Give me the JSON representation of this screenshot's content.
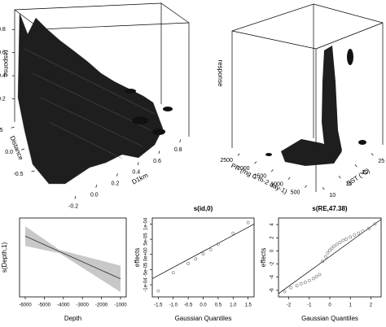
{
  "chart_data": [
    {
      "type": "surface3d",
      "axes": {
        "x": {
          "label": "D1km",
          "lim": [
            -0.3,
            0.85
          ],
          "ticks": [
            -0.2,
            {
              "value": 0,
              "label": "0.0"
            },
            0.2,
            0.4,
            0.6,
            0.8
          ]
        },
        "y": {
          "label": "Distance",
          "lim": [
            -0.8,
            0.8
          ],
          "ticks": [
            -0.5,
            {
              "value": 0,
              "label": "0.0"
            },
            0.5
          ]
        },
        "z": {
          "label": "response",
          "lim": [
            0,
            0.9
          ],
          "ticks": [
            0.2,
            0.4,
            0.6,
            0.8
          ]
        }
      }
    },
    {
      "type": "surface3d",
      "axes": {
        "x": {
          "label": "PP (mg C m-2 day-1)",
          "lim": [
            300,
            2800
          ],
          "ticks": [
            500,
            1000,
            1500,
            2000,
            2500
          ]
        },
        "y": {
          "label": "SST (°C)",
          "lim": [
            8,
            28
          ],
          "ticks": [
            10,
            15,
            20,
            25
          ]
        },
        "z": {
          "label": "response"
        }
      }
    },
    {
      "type": "line",
      "xlabel": "Depth",
      "ylabel": "s(Depth,1)",
      "x": [
        -6000,
        -4200,
        -1000
      ],
      "values": [
        0.55,
        0.08,
        -0.75
      ],
      "band_lower": [
        0.25,
        0.03,
        -1.15
      ],
      "band_upper": [
        0.85,
        0.13,
        -0.35
      ],
      "color": "#333333",
      "band_color": "#c8c8c8",
      "xlim": [
        -6300,
        -700
      ],
      "ylim": [
        -1.3,
        1.1
      ],
      "xticks": [
        -6000,
        -5000,
        -4000,
        -3000,
        -2000,
        -1000
      ]
    },
    {
      "type": "scatter",
      "title": "s(id,0)",
      "xlabel": "Gaussian Quantiles",
      "ylabel": "effects",
      "x": [
        -1.5,
        -1.0,
        -0.5,
        -0.25,
        0,
        0.25,
        0.5,
        1.0,
        1.5
      ],
      "values": [
        -0.00012,
        -6e-05,
        -3e-05,
        -1.5e-05,
        2e-06,
        1.6e-05,
        3.4e-05,
        7e-05,
        0.000105
      ],
      "line": {
        "x": [
          -1.7,
          1.7
        ],
        "values": [
          -8e-05,
          0.0001
        ]
      },
      "color": "#888888",
      "xlim": [
        -1.7,
        1.7
      ],
      "ylim": [
        -0.00014,
        0.00012
      ],
      "xticks": [
        -1.5,
        {
          "value": -1,
          "label": "-1.0"
        },
        -0.5,
        {
          "value": 0,
          "label": "0.0"
        },
        0.5,
        {
          "value": 1,
          "label": "1.0"
        },
        1.5
      ],
      "yticks": [
        {
          "value": -0.0001,
          "label": "-1e-04"
        },
        {
          "value": -5e-05,
          "label": "-5e-05"
        },
        {
          "value": 0,
          "label": "0e+00"
        },
        {
          "value": 5e-05,
          "label": "5e-05"
        },
        {
          "value": 0.0001,
          "label": "1e-04"
        }
      ]
    },
    {
      "type": "scatter",
      "title": "s(RE,47.38)",
      "xlabel": "Gaussian Quantiles",
      "ylabel": "effects",
      "x": [
        -2.2,
        -1.9,
        -1.6,
        -1.4,
        -1.2,
        -1.0,
        -0.8,
        -0.65,
        -0.5,
        -0.35,
        -0.2,
        -0.1,
        0,
        0.1,
        0.2,
        0.35,
        0.5,
        0.65,
        0.8,
        1.0,
        1.2,
        1.4,
        1.6,
        1.9,
        2.2
      ],
      "values": [
        -6.2,
        -5.6,
        -5.3,
        -5.0,
        -4.8,
        -4.5,
        -4.2,
        -3.9,
        -3.6,
        -1.6,
        -0.9,
        -0.3,
        0.1,
        0.4,
        0.7,
        1.0,
        1.3,
        1.6,
        1.8,
        2.1,
        2.4,
        2.7,
        3.0,
        3.4,
        4.1
      ],
      "line": {
        "x": [
          -2.5,
          2.5
        ],
        "values": [
          -6.5,
          4.8
        ]
      },
      "color": "#888888",
      "xlim": [
        -2.5,
        2.5
      ],
      "ylim": [
        -7,
        5
      ],
      "xticks": [
        -2,
        -1,
        0,
        1,
        2
      ],
      "yticks": [
        -6,
        -4,
        -2,
        0,
        2,
        4
      ]
    }
  ]
}
